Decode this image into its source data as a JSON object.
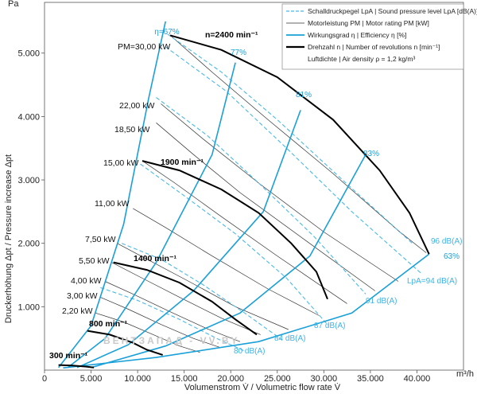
{
  "chart_data": {
    "type": "line",
    "x_unit": "m³/h",
    "y_unit": "Pa",
    "xlabel": "Volumenstrom V̇ / Volumetric flow rate V̇",
    "ylabel": "Druckerhöhung Δpt / Pressure increase Δpt",
    "xlim": [
      0,
      45000
    ],
    "ylim": [
      0,
      5800
    ],
    "x_ticks": [
      0,
      5000,
      10000,
      15000,
      20000,
      25000,
      30000,
      35000,
      40000
    ],
    "x_tick_labels": [
      "0",
      "5.000",
      "10.000",
      "15.000",
      "20.000",
      "25.000",
      "30.000",
      "35.000",
      "40.000"
    ],
    "y_ticks": [
      1000,
      2000,
      3000,
      4000,
      5000
    ],
    "y_tick_labels": [
      "1.000",
      "2.000",
      "3.000",
      "4.000",
      "5.000"
    ],
    "grid": false,
    "legend_position": "top-right",
    "legend": [
      {
        "style": "dashed-lightblue",
        "text": "Schalldruckpegel LpA | Sound pressure level LpA [dB(A)]"
      },
      {
        "style": "thin-black",
        "text": "Motorleistung PM | Motor rating PM [kW]"
      },
      {
        "style": "solid-blue",
        "text": "Wirkungsgrad η | Efficiency η [%]"
      },
      {
        "style": "thick-black",
        "text": "Drehzahl n | Number of revolutions n [min⁻¹]"
      },
      {
        "style": "none",
        "text": "Luftdichte | Air density ρ = 1,2 kg/m³"
      }
    ],
    "speed_curves": [
      {
        "name": "300 min⁻¹",
        "points": [
          [
            1500,
            80
          ],
          [
            3000,
            72
          ],
          [
            4500,
            55
          ],
          [
            5300,
            40
          ]
        ]
      },
      {
        "name": "800 min⁻¹",
        "points": [
          [
            4600,
            620
          ],
          [
            7000,
            560
          ],
          [
            9500,
            430
          ],
          [
            11000,
            320
          ],
          [
            12700,
            240
          ]
        ]
      },
      {
        "name": "1400 min⁻¹",
        "points": [
          [
            7400,
            1700
          ],
          [
            11000,
            1580
          ],
          [
            14500,
            1380
          ],
          [
            18000,
            1080
          ],
          [
            20500,
            800
          ],
          [
            22800,
            560
          ]
        ]
      },
      {
        "name": "1900 min⁻¹",
        "points": [
          [
            10500,
            3300
          ],
          [
            14500,
            3150
          ],
          [
            19000,
            2850
          ],
          [
            23000,
            2480
          ],
          [
            26500,
            2000
          ],
          [
            29200,
            1550
          ],
          [
            30400,
            1120
          ]
        ]
      },
      {
        "name": "n=2400 min⁻¹",
        "points": [
          [
            13500,
            5280
          ],
          [
            19000,
            5050
          ],
          [
            25000,
            4620
          ],
          [
            31000,
            3950
          ],
          [
            36000,
            3150
          ],
          [
            39200,
            2480
          ],
          [
            41300,
            1830
          ]
        ]
      }
    ],
    "efficiency_lines": [
      {
        "name": "η=67%",
        "points": [
          [
            1500,
            40
          ],
          [
            5000,
            700
          ],
          [
            8500,
            2300
          ],
          [
            11200,
            4300
          ],
          [
            13000,
            5500
          ]
        ]
      },
      {
        "name": "77%",
        "points": [
          [
            2500,
            40
          ],
          [
            6500,
            500
          ],
          [
            12000,
            1700
          ],
          [
            18000,
            3400
          ],
          [
            20500,
            4850
          ]
        ]
      },
      {
        "name": "81%",
        "points": [
          [
            3500,
            40
          ],
          [
            9000,
            400
          ],
          [
            16000,
            1250
          ],
          [
            23500,
            2500
          ],
          [
            27500,
            4100
          ]
        ]
      },
      {
        "name": "83%",
        "points": [
          [
            5000,
            40
          ],
          [
            13000,
            380
          ],
          [
            21000,
            900
          ],
          [
            28500,
            1800
          ],
          [
            34500,
            3400
          ]
        ]
      },
      {
        "name": "63%",
        "points": [
          [
            2000,
            35
          ],
          [
            12000,
            200
          ],
          [
            23000,
            450
          ],
          [
            33000,
            900
          ],
          [
            41300,
            1830
          ]
        ]
      }
    ],
    "efficiency_labels": [
      "η=67%",
      "77%",
      "81%",
      "83%",
      "63%"
    ],
    "power_lines": [
      {
        "name": "PM=30,00 kW",
        "points": [
          [
            13500,
            5280
          ],
          [
            18000,
            4700
          ],
          [
            24000,
            3950
          ],
          [
            31000,
            3100
          ],
          [
            38000,
            2200
          ],
          [
            41000,
            1850
          ]
        ]
      },
      {
        "name": "22,00 kW",
        "points": [
          [
            12500,
            4200
          ],
          [
            17000,
            3650
          ],
          [
            23000,
            2950
          ],
          [
            30000,
            2180
          ],
          [
            38000,
            1400
          ]
        ]
      },
      {
        "name": "18,50 kW",
        "points": [
          [
            12000,
            3900
          ],
          [
            16000,
            3400
          ],
          [
            21000,
            2800
          ],
          [
            28000,
            2050
          ],
          [
            35500,
            1250
          ]
        ]
      },
      {
        "name": "15,00 kW",
        "points": [
          [
            10500,
            3300
          ],
          [
            14000,
            2950
          ],
          [
            19000,
            2420
          ],
          [
            25000,
            1800
          ],
          [
            32500,
            1050
          ]
        ]
      },
      {
        "name": "11,00 kW",
        "points": [
          [
            9500,
            2550
          ],
          [
            13000,
            2250
          ],
          [
            18000,
            1800
          ],
          [
            24000,
            1280
          ],
          [
            29500,
            860
          ]
        ]
      },
      {
        "name": "7,50 kW",
        "points": [
          [
            7800,
            2000
          ],
          [
            11000,
            1750
          ],
          [
            15500,
            1400
          ],
          [
            20500,
            1000
          ],
          [
            26200,
            640
          ]
        ]
      },
      {
        "name": "5,50 kW",
        "points": [
          [
            7200,
            1700
          ],
          [
            10500,
            1450
          ],
          [
            14500,
            1150
          ],
          [
            19000,
            820
          ],
          [
            23200,
            560
          ]
        ]
      },
      {
        "name": "4,00 kW",
        "points": [
          [
            6500,
            1400
          ],
          [
            9500,
            1200
          ],
          [
            13500,
            920
          ],
          [
            17500,
            650
          ],
          [
            21000,
            450
          ]
        ]
      },
      {
        "name": "3,00 kW",
        "points": [
          [
            6000,
            1150
          ],
          [
            9000,
            960
          ],
          [
            12500,
            720
          ],
          [
            16000,
            500
          ],
          [
            18800,
            360
          ]
        ]
      },
      {
        "name": "2,20 kW",
        "points": [
          [
            5500,
            900
          ],
          [
            8500,
            760
          ],
          [
            11500,
            570
          ],
          [
            14500,
            380
          ],
          [
            16700,
            280
          ]
        ]
      }
    ],
    "sound_lines": [
      {
        "name": "LpA=94 dB(A)",
        "points": [
          [
            13000,
            5100
          ],
          [
            19500,
            4400
          ],
          [
            26000,
            3500
          ],
          [
            33000,
            2500
          ],
          [
            40500,
            1520
          ]
        ]
      },
      {
        "name": "96 dB(A)",
        "points": [
          [
            13200,
            5300
          ],
          [
            19000,
            4700
          ],
          [
            25000,
            3950
          ],
          [
            32000,
            3000
          ],
          [
            39500,
            2000
          ]
        ]
      },
      {
        "name": "91 dB(A)",
        "points": [
          [
            12000,
            4300
          ],
          [
            17500,
            3700
          ],
          [
            23000,
            2950
          ],
          [
            29000,
            2100
          ],
          [
            34500,
            1200
          ]
        ]
      },
      {
        "name": "87 dB(A)",
        "points": [
          [
            10300,
            3250
          ],
          [
            15000,
            2750
          ],
          [
            20500,
            2150
          ],
          [
            26000,
            1450
          ],
          [
            30500,
            700
          ]
        ]
      },
      {
        "name": "84 dB(A)",
        "points": [
          [
            8300,
            2000
          ],
          [
            12500,
            1750
          ],
          [
            17000,
            1350
          ],
          [
            21500,
            900
          ],
          [
            25500,
            480
          ]
        ]
      },
      {
        "name": "80 dB(A)",
        "points": [
          [
            6000,
            1300
          ],
          [
            10000,
            1100
          ],
          [
            14500,
            800
          ],
          [
            18500,
            500
          ],
          [
            21500,
            300
          ]
        ]
      }
    ],
    "sound_labels": [
      "96 dB(A)",
      "LpA=94 dB(A)",
      "91 dB(A)",
      "87 dB(A)",
      "84 dB(A)",
      "80 dB(A)"
    ],
    "power_labels": [
      "PM=30,00 kW",
      "22,00 kW",
      "18,50 kW",
      "15,00 kW",
      "11,00 kW",
      "7,50 kW",
      "5,50 kW",
      "4,00 kW",
      "3,00 kW",
      "2,20 kW"
    ],
    "speed_labels": [
      "n=2400 min⁻¹",
      "1900 min⁻¹",
      "1400 min⁻¹",
      "800 min⁻¹",
      "300 min⁻¹"
    ],
    "watermark": "ВЕНТЗАПАД - VV.BY",
    "colors": {
      "efficiency": "#1aa0d8",
      "sound": "#4bb8ea",
      "speed": "#000000",
      "power": "#333333"
    }
  }
}
